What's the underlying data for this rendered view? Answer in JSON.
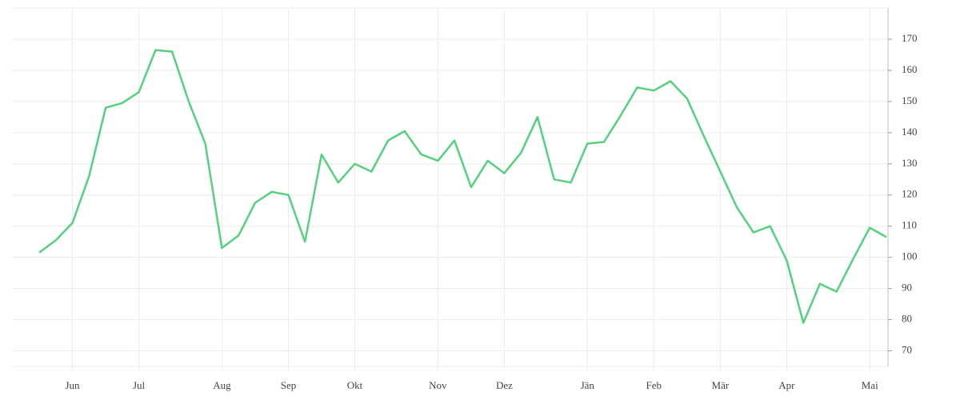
{
  "chart_data": {
    "type": "line",
    "categories": [
      null,
      null,
      "Jun",
      null,
      null,
      null,
      "Jul",
      null,
      null,
      null,
      null,
      "Aug",
      null,
      null,
      null,
      "Sep",
      null,
      null,
      null,
      "Okt",
      null,
      null,
      null,
      null,
      "Nov",
      null,
      null,
      null,
      "Dez",
      null,
      null,
      null,
      null,
      "Jän",
      null,
      null,
      null,
      "Feb",
      null,
      null,
      null,
      "Mär",
      null,
      null,
      null,
      "Apr",
      null,
      null,
      null,
      null,
      "Mai",
      null
    ],
    "values": [
      101.5,
      105.5,
      111,
      126,
      148,
      149.5,
      153,
      166.5,
      166,
      150,
      136.5,
      103,
      107,
      117.5,
      121,
      120,
      105,
      133,
      124,
      130,
      127.5,
      137.5,
      140.5,
      133,
      131,
      137.5,
      122.5,
      131,
      127,
      133.5,
      145,
      125,
      124,
      136.5,
      137,
      145.5,
      154.5,
      153.5,
      156.5,
      151,
      139,
      127.5,
      116,
      108,
      110,
      99,
      79,
      91.5,
      89,
      99.5,
      109.5,
      106.5
    ],
    "color": "#55d17e",
    "ylim": [
      65,
      180
    ],
    "yticks": [
      70,
      80,
      90,
      100,
      110,
      120,
      130,
      140,
      150,
      160,
      170
    ],
    "grid": true
  }
}
